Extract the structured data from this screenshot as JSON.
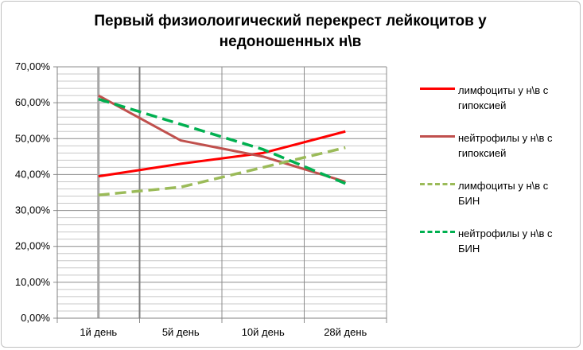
{
  "chart_data": {
    "type": "line",
    "title_lines": [
      "Первый физиолоигический перекрест лейкоцитов у",
      "недоношенных н\\в"
    ],
    "categories": [
      "1й день",
      "5й день",
      "10й день",
      "28й день"
    ],
    "ylim": [
      0,
      0.7
    ],
    "yticks": [
      "0,00%",
      "10,00%",
      "20,00%",
      "30,00%",
      "40,00%",
      "50,00%",
      "60,00%",
      "70,00%"
    ],
    "grid": true,
    "legend_position": "right",
    "series": [
      {
        "name": "лимфоциты у н\\в с гипоксией",
        "values": [
          0.395,
          0.43,
          0.46,
          0.52
        ],
        "color": "#ff0000",
        "dash": "solid"
      },
      {
        "name": "нейтрофилы у н\\в с гипоксией",
        "values": [
          0.62,
          0.495,
          0.45,
          0.38
        ],
        "color": "#c0504d",
        "dash": "solid"
      },
      {
        "name": "лимфоциты у н\\в с БИН",
        "values": [
          0.343,
          0.365,
          0.42,
          0.475
        ],
        "color": "#9bbb59",
        "dash": "dashed"
      },
      {
        "name": "нейтрофилы у н\\в с БИН",
        "values": [
          0.61,
          0.54,
          0.47,
          0.375
        ],
        "color": "#00b050",
        "dash": "dashed"
      }
    ]
  }
}
